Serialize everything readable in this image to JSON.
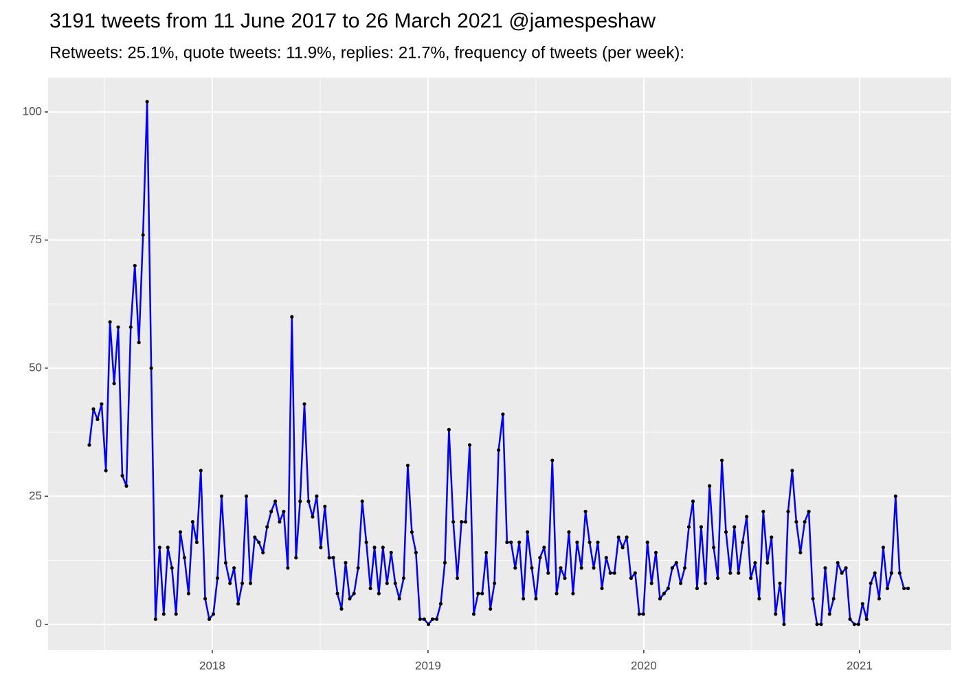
{
  "chart_data": {
    "type": "line",
    "title": "3191 tweets from 11 June 2017 to 26 March 2021 @jamespeshaw",
    "subtitle": "Retweets: 25.1%, quote tweets: 11.9%, replies: 21.7%, frequency of tweets (per week):",
    "x": [
      2017.43,
      2017.449,
      2017.468,
      2017.487,
      2017.507,
      2017.526,
      2017.545,
      2017.564,
      2017.583,
      2017.602,
      2017.622,
      2017.641,
      2017.66,
      2017.679,
      2017.698,
      2017.717,
      2017.737,
      2017.756,
      2017.775,
      2017.794,
      2017.813,
      2017.832,
      2017.852,
      2017.871,
      2017.89,
      2017.909,
      2017.928,
      2017.947,
      2017.967,
      2017.986,
      2018.005,
      2018.024,
      2018.043,
      2018.062,
      2018.082,
      2018.101,
      2018.12,
      2018.139,
      2018.158,
      2018.177,
      2018.197,
      2018.216,
      2018.235,
      2018.254,
      2018.273,
      2018.292,
      2018.312,
      2018.331,
      2018.35,
      2018.369,
      2018.388,
      2018.407,
      2018.427,
      2018.446,
      2018.465,
      2018.484,
      2018.503,
      2018.522,
      2018.542,
      2018.561,
      2018.58,
      2018.599,
      2018.618,
      2018.637,
      2018.657,
      2018.676,
      2018.695,
      2018.714,
      2018.733,
      2018.752,
      2018.772,
      2018.791,
      2018.81,
      2018.829,
      2018.848,
      2018.867,
      2018.887,
      2018.906,
      2018.925,
      2018.944,
      2018.963,
      2018.982,
      2019.002,
      2019.021,
      2019.04,
      2019.059,
      2019.078,
      2019.097,
      2019.117,
      2019.136,
      2019.155,
      2019.174,
      2019.193,
      2019.212,
      2019.232,
      2019.251,
      2019.27,
      2019.289,
      2019.308,
      2019.327,
      2019.347,
      2019.366,
      2019.385,
      2019.404,
      2019.423,
      2019.442,
      2019.461,
      2019.481,
      2019.5,
      2019.519,
      2019.538,
      2019.557,
      2019.576,
      2019.596,
      2019.615,
      2019.634,
      2019.653,
      2019.672,
      2019.691,
      2019.711,
      2019.73,
      2019.749,
      2019.768,
      2019.787,
      2019.806,
      2019.826,
      2019.845,
      2019.864,
      2019.883,
      2019.902,
      2019.921,
      2019.941,
      2019.96,
      2019.979,
      2019.998,
      2020.017,
      2020.036,
      2020.056,
      2020.075,
      2020.094,
      2020.113,
      2020.132,
      2020.151,
      2020.171,
      2020.19,
      2020.209,
      2020.228,
      2020.247,
      2020.266,
      2020.286,
      2020.305,
      2020.324,
      2020.343,
      2020.362,
      2020.381,
      2020.401,
      2020.42,
      2020.439,
      2020.458,
      2020.477,
      2020.496,
      2020.516,
      2020.535,
      2020.554,
      2020.573,
      2020.592,
      2020.611,
      2020.631,
      2020.65,
      2020.669,
      2020.688,
      2020.707,
      2020.726,
      2020.746,
      2020.765,
      2020.784,
      2020.803,
      2020.822,
      2020.841,
      2020.861,
      2020.88,
      2020.899,
      2020.918,
      2020.937,
      2020.956,
      2020.976,
      2020.995,
      2021.014,
      2021.033,
      2021.052,
      2021.071,
      2021.091,
      2021.11,
      2021.129,
      2021.148,
      2021.167,
      2021.186,
      2021.206,
      2021.225
    ],
    "values": [
      35,
      42,
      40,
      43,
      30,
      59,
      47,
      58,
      29,
      27,
      58,
      70,
      55,
      76,
      102,
      50,
      1,
      15,
      2,
      15,
      11,
      2,
      18,
      13,
      6,
      20,
      16,
      30,
      5,
      1,
      2,
      9,
      25,
      12,
      8,
      11,
      4,
      8,
      25,
      8,
      17,
      16,
      14,
      19,
      22,
      24,
      20,
      22,
      11,
      60,
      13,
      24,
      43,
      24,
      21,
      25,
      15,
      23,
      13,
      13,
      6,
      3,
      12,
      5,
      6,
      11,
      24,
      16,
      7,
      15,
      6,
      15,
      8,
      14,
      8,
      5,
      9,
      31,
      18,
      14,
      1,
      1,
      0,
      1,
      1,
      4,
      12,
      38,
      20,
      9,
      20,
      20,
      35,
      2,
      6,
      6,
      14,
      3,
      8,
      34,
      41,
      16,
      16,
      11,
      16,
      5,
      18,
      11,
      5,
      13,
      15,
      10,
      32,
      6,
      11,
      9,
      18,
      6,
      16,
      11,
      22,
      16,
      11,
      16,
      7,
      13,
      10,
      10,
      17,
      15,
      17,
      9,
      10,
      2,
      2,
      16,
      8,
      14,
      5,
      6,
      7,
      11,
      12,
      8,
      11,
      19,
      24,
      7,
      19,
      8,
      27,
      15,
      9,
      32,
      18,
      10,
      19,
      10,
      16,
      21,
      9,
      12,
      5,
      22,
      12,
      17,
      2,
      8,
      0,
      22,
      30,
      20,
      14,
      20,
      22,
      5,
      0,
      0,
      11,
      2,
      5,
      12,
      10,
      11,
      1,
      0,
      0,
      4,
      1,
      8,
      10,
      5,
      15,
      7,
      10,
      25,
      10,
      7,
      7
    ],
    "line_color": "#0000ff",
    "point_color": "#000000",
    "xlim": [
      2017.239,
      2021.424
    ],
    "xticks": [
      2018,
      2019,
      2020,
      2021
    ],
    "ylim": [
      -5.0,
      106.7
    ],
    "yticks": [
      0,
      25,
      50,
      75,
      100
    ],
    "grid": true
  }
}
